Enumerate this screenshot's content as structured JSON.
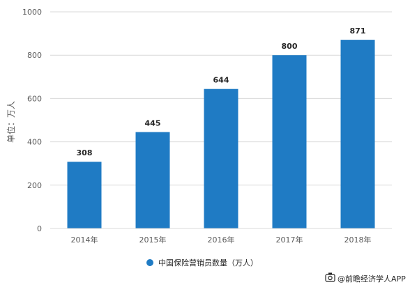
{
  "chart_data": {
    "type": "bar",
    "title": "",
    "xlabel": "",
    "ylabel": "单位：万人",
    "categories": [
      "2014年",
      "2015年",
      "2016年",
      "2017年",
      "2018年"
    ],
    "series": [
      {
        "name": "中国保险营销员数量（万人）",
        "values": [
          308,
          445,
          644,
          800,
          871
        ]
      }
    ],
    "data_labels": [
      "308",
      "445",
      "644",
      "800",
      "871"
    ],
    "ylim": [
      0,
      1000
    ],
    "yticks": [
      0,
      200,
      400,
      600,
      800,
      1000
    ],
    "ytick_labels": [
      "0",
      "200",
      "400",
      "600",
      "800",
      "1000"
    ],
    "grid": true,
    "legend_position": "bottom-center",
    "bar_color": "#1f7bc4"
  },
  "footer": {
    "icon": "camera-icon",
    "text": "@前瞻经济学人APP"
  }
}
